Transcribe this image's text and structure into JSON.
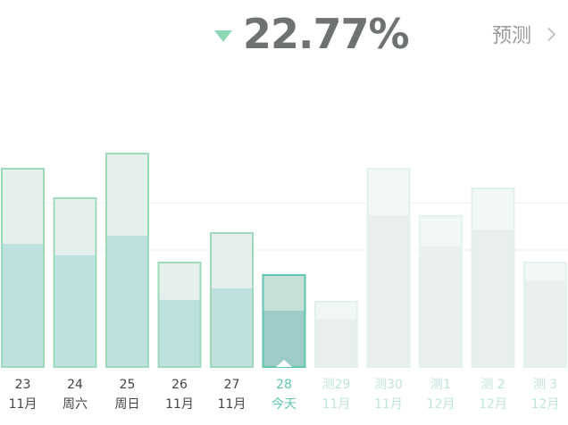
{
  "header": {
    "change_percent": "22.77%",
    "trend_icon": "triangle-down-icon",
    "forecast_label": "预测",
    "forecast_icon": "chevron-right-icon"
  },
  "colors": {
    "trend": "#8ed7b4",
    "today": "#5fc7b0",
    "past_border": "#9ed8bb",
    "past_fill_top": "#e5efec",
    "past_fill_bottom": "#bde1df",
    "today_fill_top": "#c6e0d8",
    "today_fill_bottom": "#9ccbc8",
    "forecast_border": "#e2f1ec",
    "forecast_fill_top": "#f1f7f5",
    "forecast_fill_bottom": "#e9efed",
    "past_label": "#444444",
    "forecast_label": "#bfe4d8"
  },
  "chart_data": {
    "type": "bar",
    "gridlines": true,
    "grid_fractions": [
      0.485,
      0.68
    ],
    "categories": [
      {
        "top": "23",
        "bottom": "11月",
        "status": "past",
        "total": 0.826,
        "inner": 0.51
      },
      {
        "top": "24",
        "bottom": "周六",
        "status": "past",
        "total": 0.704,
        "inner": 0.463
      },
      {
        "top": "25",
        "bottom": "周日",
        "status": "past",
        "total": 0.889,
        "inner": 0.544
      },
      {
        "top": "26",
        "bottom": "11月",
        "status": "past",
        "total": 0.437,
        "inner": 0.278
      },
      {
        "top": "27",
        "bottom": "11月",
        "status": "past",
        "total": 0.559,
        "inner": 0.326
      },
      {
        "top": "28",
        "bottom": "今天",
        "status": "today",
        "total": 0.385,
        "inner": 0.233
      },
      {
        "top": "测29",
        "bottom": "11月",
        "status": "forecast",
        "total": 0.274,
        "inner": 0.2
      },
      {
        "top": "测30",
        "bottom": "11月",
        "status": "forecast",
        "total": 0.826,
        "inner": 0.63
      },
      {
        "top": "测1",
        "bottom": "12月",
        "status": "forecast",
        "total": 0.63,
        "inner": 0.5
      },
      {
        "top": "测 2",
        "bottom": "12月",
        "status": "forecast",
        "total": 0.744,
        "inner": 0.57
      },
      {
        "top": "测 3",
        "bottom": "12月",
        "status": "forecast",
        "total": 0.437,
        "inner": 0.356
      }
    ]
  }
}
